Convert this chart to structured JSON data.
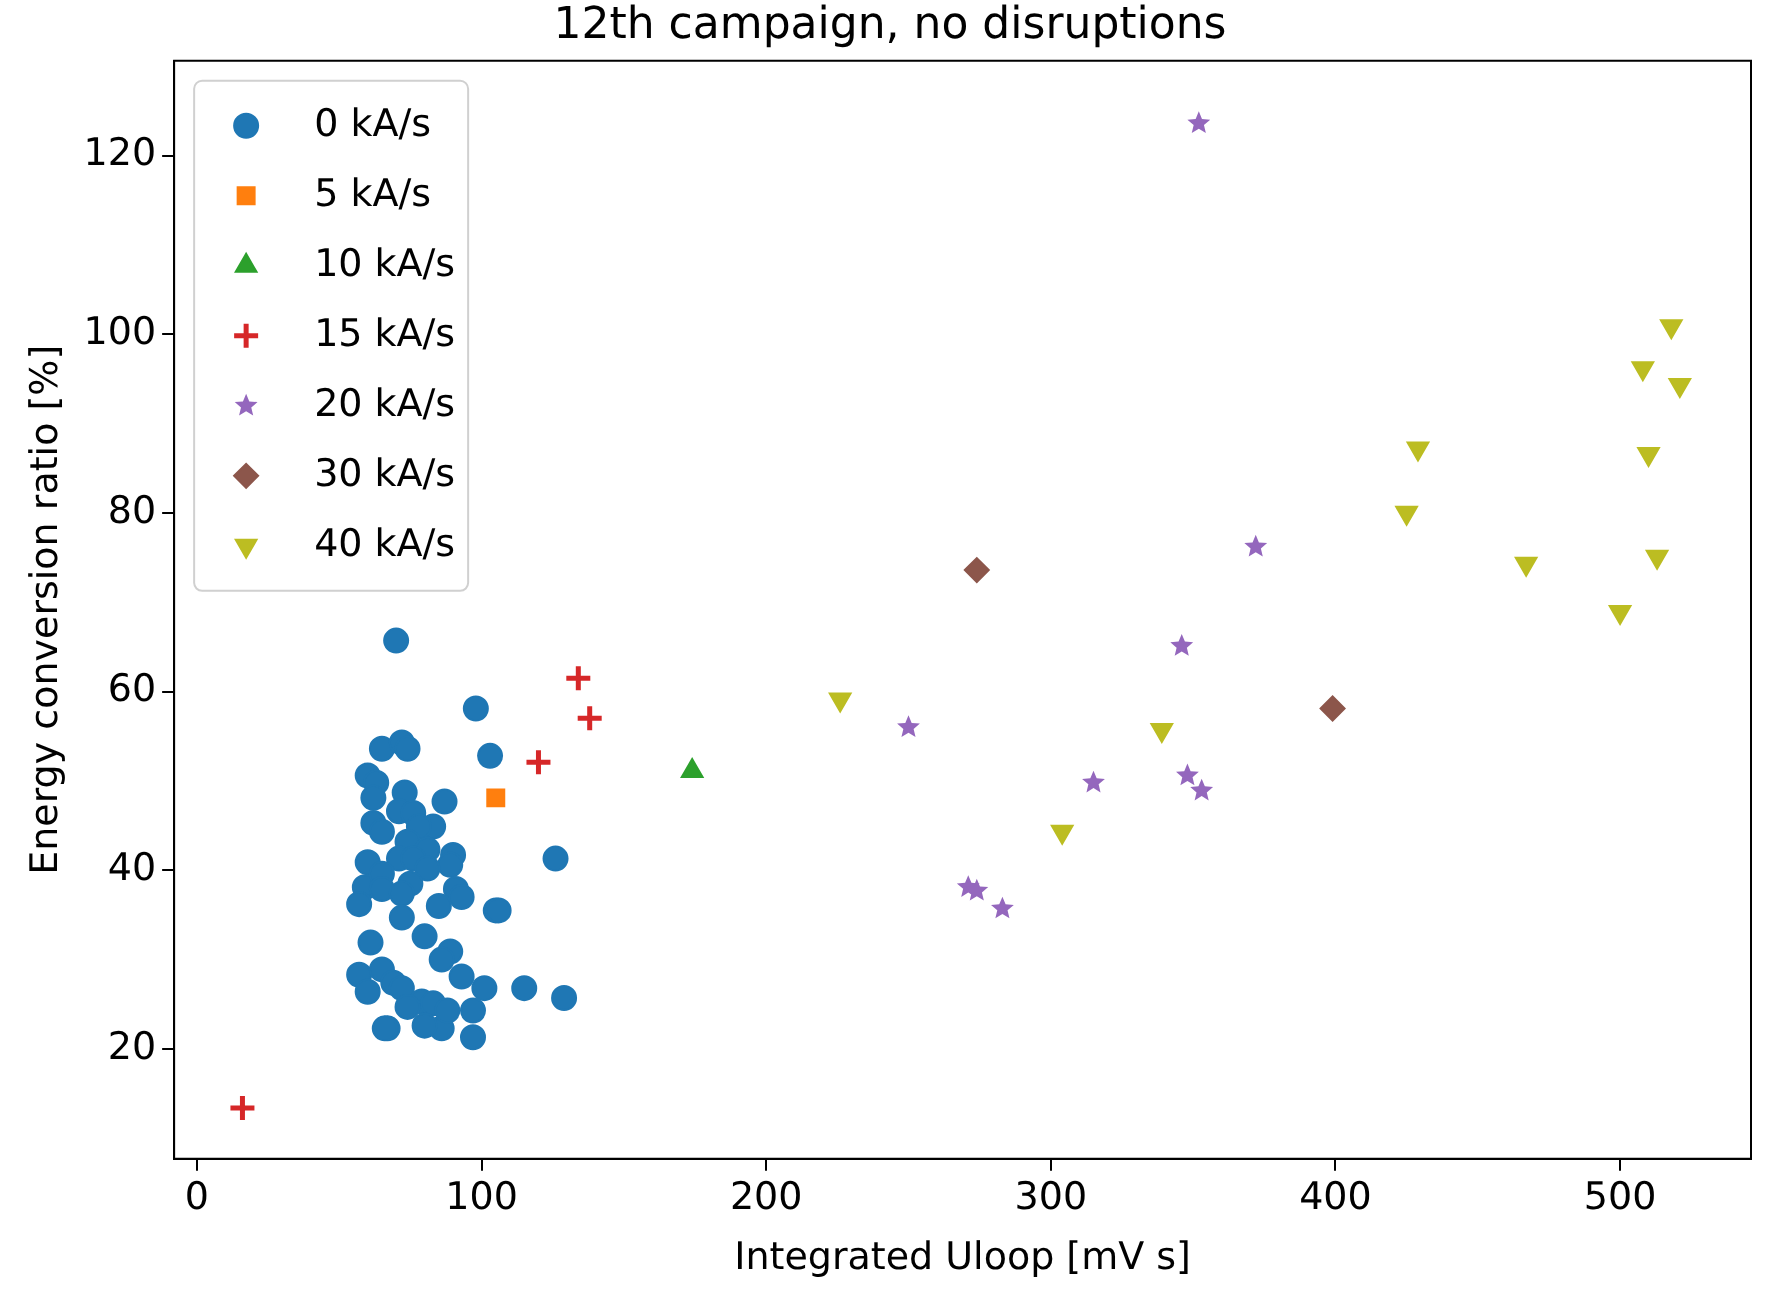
{
  "chart_data": {
    "type": "scatter",
    "title": "12th campaign, no disruptions",
    "xlabel": "Integrated Uloop [mV s]",
    "ylabel": "Energy conversion ratio [%]",
    "xlim": [
      -8,
      546
    ],
    "ylim": [
      7.7,
      130.6
    ],
    "xticks": [
      0,
      100,
      200,
      300,
      400,
      500
    ],
    "yticks": [
      20,
      40,
      60,
      80,
      100,
      120
    ],
    "grid": false,
    "legend": "top left",
    "series": [
      {
        "name": "0 kA/s",
        "color": "#1f77b4",
        "marker": "circle",
        "x": [
          70,
          98,
          103,
          126,
          105,
          115,
          129,
          101,
          97,
          97,
          86,
          67,
          65,
          72,
          74,
          60,
          63,
          62,
          73,
          71,
          87,
          76,
          83,
          78,
          62,
          65,
          74,
          81,
          71,
          76,
          90,
          89,
          81,
          60,
          59,
          65,
          65,
          75,
          72,
          91,
          93,
          57,
          72,
          85,
          106,
          61,
          80,
          89,
          86,
          57,
          65,
          69,
          72,
          60,
          93,
          79,
          83,
          88,
          74,
          66,
          80
        ],
        "values": [
          65.7,
          58.1,
          52.8,
          41.3,
          35.5,
          26.8,
          25.7,
          26.8,
          24.3,
          21.3,
          22.3,
          22.3,
          53.6,
          54.3,
          53.6,
          50.6,
          49.8,
          48.1,
          48.7,
          46.6,
          47.7,
          46.4,
          44.9,
          44.9,
          45.3,
          44.3,
          43.2,
          42.3,
          41.3,
          41.3,
          41.7,
          40.6,
          40.2,
          40.9,
          38.1,
          39.6,
          37.9,
          38.5,
          37.4,
          37.9,
          37.0,
          36.2,
          34.7,
          36.0,
          35.5,
          31.9,
          32.6,
          30.9,
          30.0,
          28.3,
          28.9,
          27.4,
          26.8,
          26.4,
          28.1,
          25.3,
          25.1,
          24.3,
          24.7,
          22.3,
          22.6
        ]
      },
      {
        "name": "5 kA/s",
        "color": "#ff7f0e",
        "marker": "square",
        "x": [
          105
        ],
        "values": [
          48.1
        ]
      },
      {
        "name": "10 kA/s",
        "color": "#2ca02c",
        "marker": "triangle",
        "x": [
          174
        ],
        "values": [
          51.1
        ]
      },
      {
        "name": "15 kA/s",
        "color": "#d62728",
        "marker": "cross",
        "x": [
          16,
          134,
          138,
          120
        ],
        "values": [
          13.4,
          61.5,
          57.0,
          52.1
        ]
      },
      {
        "name": "20 kA/s",
        "color": "#9467bd",
        "marker": "star",
        "x": [
          352,
          372,
          346,
          250,
          315,
          348,
          353,
          271,
          274,
          283
        ],
        "values": [
          123.6,
          76.2,
          65.1,
          56.0,
          49.8,
          50.6,
          48.9,
          38.1,
          37.7,
          35.7
        ]
      },
      {
        "name": "30 kA/s",
        "color": "#8c564b",
        "marker": "diamond",
        "x": [
          274,
          399
        ],
        "values": [
          73.6,
          58.1
        ]
      },
      {
        "name": "40 kA/s",
        "color": "#bcbd22",
        "marker": "triangle-down",
        "x": [
          226,
          339,
          304,
          518,
          508,
          521,
          429,
          510,
          425,
          467,
          513,
          500
        ],
        "values": [
          59.1,
          55.7,
          44.3,
          100.9,
          96.2,
          94.3,
          87.2,
          86.6,
          80.0,
          74.3,
          75.1,
          68.9
        ]
      }
    ]
  }
}
